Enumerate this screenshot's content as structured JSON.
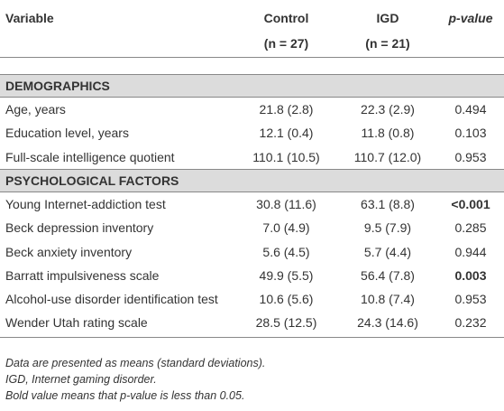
{
  "table": {
    "header": [
      "Variable",
      "Control",
      "IGD",
      "p-value"
    ],
    "subheader": [
      "(n = 27)",
      "(n = 21)"
    ],
    "sections": [
      {
        "title": "DEMOGRAPHICS",
        "rows": [
          [
            "Age, years",
            "21.8 (2.8)",
            "22.3 (2.9)",
            "0.494"
          ],
          [
            "Education level, years",
            "12.1 (0.4)",
            "11.8 (0.8)",
            "0.103"
          ],
          [
            "Full-scale intelligence quotient",
            "110.1 (10.5)",
            "110.7 (12.0)",
            "0.953"
          ]
        ],
        "bold_p": [
          false,
          false,
          false
        ]
      },
      {
        "title": "PSYCHOLOGICAL FACTORS",
        "rows": [
          [
            "Young Internet-addiction test",
            "30.8 (11.6)",
            "63.1 (8.8)",
            "<0.001"
          ],
          [
            "Beck depression inventory",
            "7.0 (4.9)",
            "9.5 (7.9)",
            "0.285"
          ],
          [
            "Beck anxiety inventory",
            "5.6 (4.5)",
            "5.7 (4.4)",
            "0.944"
          ],
          [
            "Barratt impulsiveness scale",
            "49.9 (5.5)",
            "56.4 (7.8)",
            "0.003"
          ],
          [
            "Alcohol-use disorder identification test",
            "10.6 (5.6)",
            "10.8 (7.4)",
            "0.953"
          ],
          [
            "Wender Utah rating scale",
            "28.5 (12.5)",
            "24.3 (14.6)",
            "0.232"
          ]
        ],
        "bold_p": [
          true,
          false,
          false,
          true,
          false,
          false
        ]
      }
    ]
  },
  "notes": [
    "Data are presented as means (standard deviations).",
    "IGD, Internet gaming disorder.",
    "Bold value means that p-value is less than 0.05."
  ]
}
